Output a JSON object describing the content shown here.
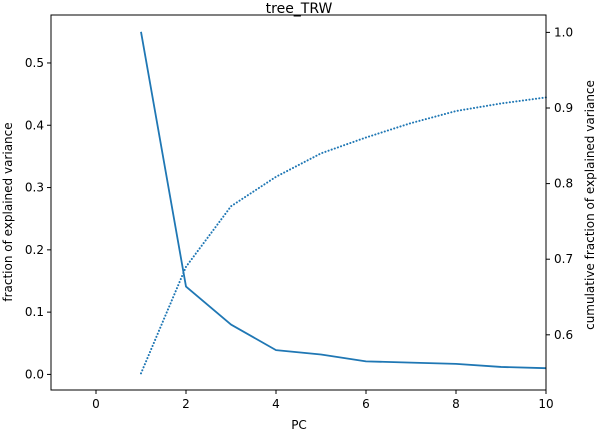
{
  "chart_data": {
    "type": "line",
    "title": "tree_TRW",
    "xlabel": "PC",
    "ylabel": "fraction of explained variance",
    "y2label": "cumulative fraction of explained variance",
    "xlim": [
      -1,
      10
    ],
    "ylim": [
      -0.025,
      0.577
    ],
    "y2lim": [
      0.527,
      1.023
    ],
    "xticks": [
      0,
      2,
      4,
      6,
      8,
      10
    ],
    "yticks": [
      0.0,
      0.1,
      0.2,
      0.3,
      0.4,
      0.5
    ],
    "y2ticks": [
      0.6,
      0.7,
      0.8,
      0.9,
      1.0
    ],
    "xtick_labels": [
      "0",
      "2",
      "4",
      "6",
      "8",
      "10"
    ],
    "ytick_labels": [
      "0.0",
      "0.1",
      "0.2",
      "0.3",
      "0.4",
      "0.5"
    ],
    "y2tick_labels": [
      "0.6",
      "0.7",
      "0.8",
      "0.9",
      "1.0"
    ],
    "series": [
      {
        "axis": "left",
        "style": "solid",
        "color": "#1f77b4",
        "x": [
          1,
          2,
          3,
          4,
          5,
          6,
          7,
          8,
          9,
          10
        ],
        "y": [
          0.55,
          0.141,
          0.08,
          0.039,
          0.032,
          0.021,
          0.019,
          0.017,
          0.012,
          0.01
        ]
      },
      {
        "axis": "right",
        "style": "dotted",
        "color": "#1f77b4",
        "x": [
          1,
          2,
          3,
          4,
          5,
          6,
          7,
          8,
          9,
          10
        ],
        "y": [
          0.549,
          0.69,
          0.77,
          0.809,
          0.84,
          0.861,
          0.88,
          0.896,
          0.906,
          0.914
        ]
      }
    ]
  }
}
